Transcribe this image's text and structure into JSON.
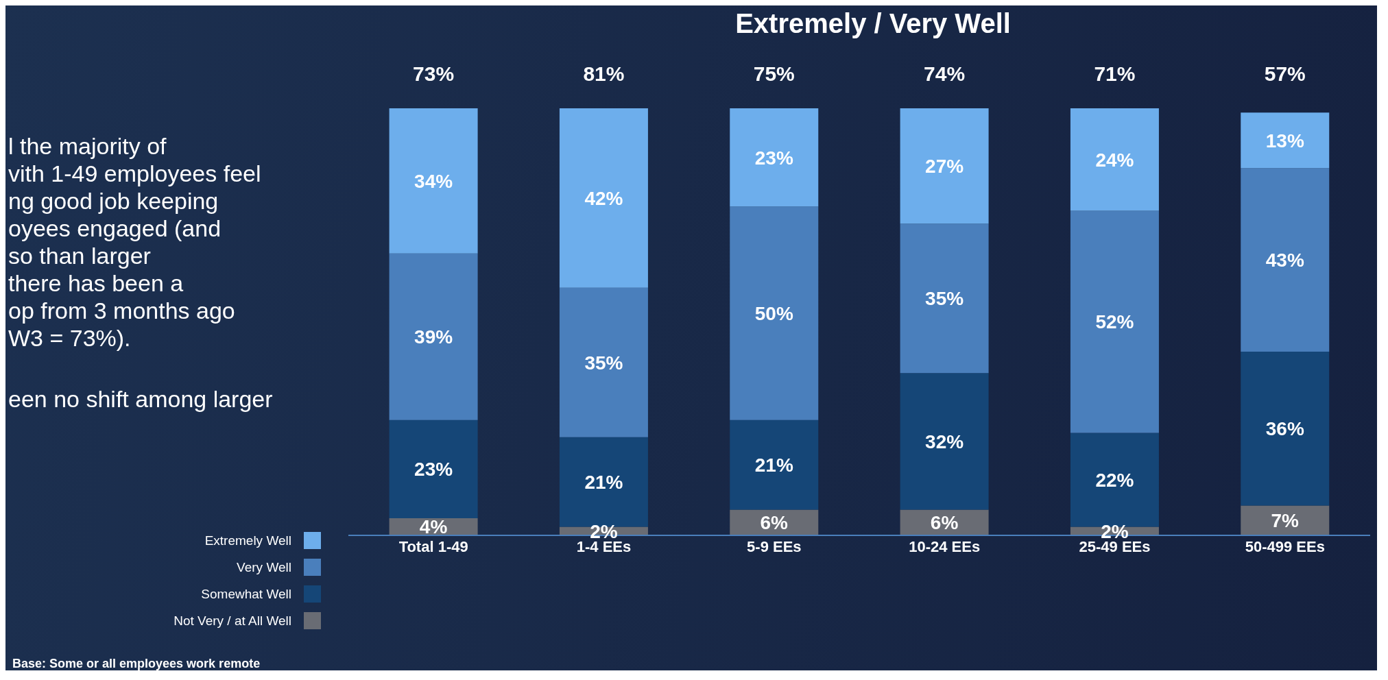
{
  "chart_data": {
    "type": "bar",
    "title": "Extremely / Very Well",
    "stacked": true,
    "legend": "bottom left",
    "categories": [
      "Total 1-49",
      "1-4 EEs",
      "5-9 EEs",
      "10-24 EEs",
      "25-49 EEs",
      "50-499 EEs"
    ],
    "series": [
      {
        "name": "Not Very / at All Well",
        "color": "#696c74",
        "values": [
          4,
          2,
          6,
          6,
          2,
          7
        ],
        "value_labels": [
          "4%",
          "2%",
          "6%",
          "6%",
          "2%",
          "7%"
        ]
      },
      {
        "name": "Somewhat Well",
        "color": "#154677",
        "values": [
          23,
          21,
          21,
          32,
          22,
          36
        ],
        "value_labels": [
          "23%",
          "21%",
          "21%",
          "32%",
          "22%",
          "36%"
        ]
      },
      {
        "name": "Very Well",
        "color": "#4a7fbc",
        "values": [
          39,
          35,
          50,
          35,
          52,
          43
        ],
        "value_labels": [
          "39%",
          "35%",
          "50%",
          "35%",
          "52%",
          "43%"
        ]
      },
      {
        "name": "Extremely Well",
        "color": "#6daeec",
        "values": [
          34,
          42,
          23,
          27,
          24,
          13
        ],
        "value_labels": [
          "34%",
          "42%",
          "23%",
          "27%",
          "24%",
          "13%"
        ]
      }
    ],
    "annotations": [
      "l the majority of\nvith 1-49 employees feel\nng good job keeping\noyees engaged (and\nso than larger\nthere has been a\nop from 3 months ago\nW3 = 73%).",
      "een no shift among larger",
      "Base: Some or all employees work remote",
      "73%",
      "81%",
      "75%",
      "74%",
      "71%",
      "57%"
    ]
  }
}
